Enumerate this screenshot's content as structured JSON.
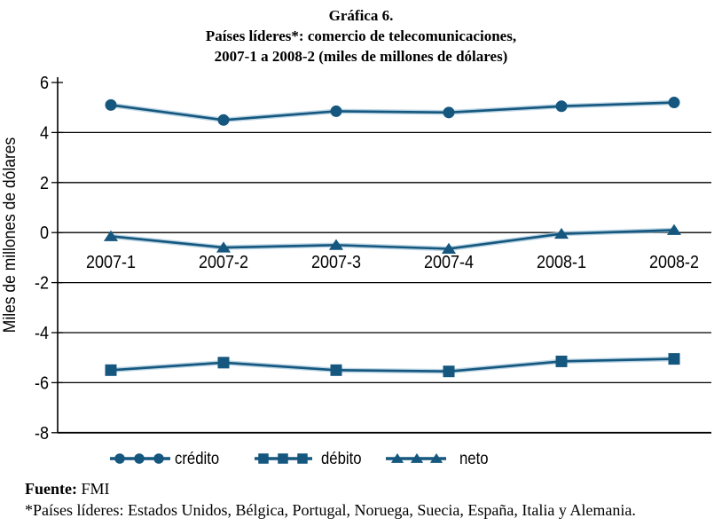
{
  "title": {
    "line1": "Gráfica 6.",
    "line2": "Países líderes*: comercio de telecomunicaciones,",
    "line3": "2007-1 a 2008-2 (miles de millones de dólares)"
  },
  "chart_data": {
    "type": "line",
    "title": "Gráfica 6. Países líderes*: comercio de telecomunicaciones, 2007-1 a 2008-2 (miles de millones de dólares)",
    "categories": [
      "2007-1",
      "2007-2",
      "2007-3",
      "2007-4",
      "2008-1",
      "2008-2"
    ],
    "series": [
      {
        "name": "crédito",
        "marker": "circle",
        "values": [
          5.1,
          4.5,
          4.85,
          4.8,
          5.05,
          5.2
        ]
      },
      {
        "name": "débito",
        "marker": "square",
        "values": [
          -5.5,
          -5.2,
          -5.5,
          -5.55,
          -5.15,
          -5.05
        ]
      },
      {
        "name": "neto",
        "marker": "triangle",
        "values": [
          -0.15,
          -0.6,
          -0.5,
          -0.65,
          -0.05,
          0.1
        ]
      }
    ],
    "xlabel": "",
    "ylabel": "Miles de millones de dólares",
    "ylim": [
      -8,
      6
    ],
    "yticks": [
      6,
      4,
      2,
      0,
      -2,
      -4,
      -6,
      -8
    ],
    "grid": true,
    "legend_position": "bottom",
    "series_color": "#15577e",
    "halo_color": "#a3c6db",
    "axis_color": "#000000"
  },
  "footer": {
    "source_label": "Fuente:",
    "source_value": "FMI",
    "note": "*Países líderes: Estados Unidos, Bélgica, Portugal, Noruega, Suecia, España, Italia y Alemania."
  }
}
